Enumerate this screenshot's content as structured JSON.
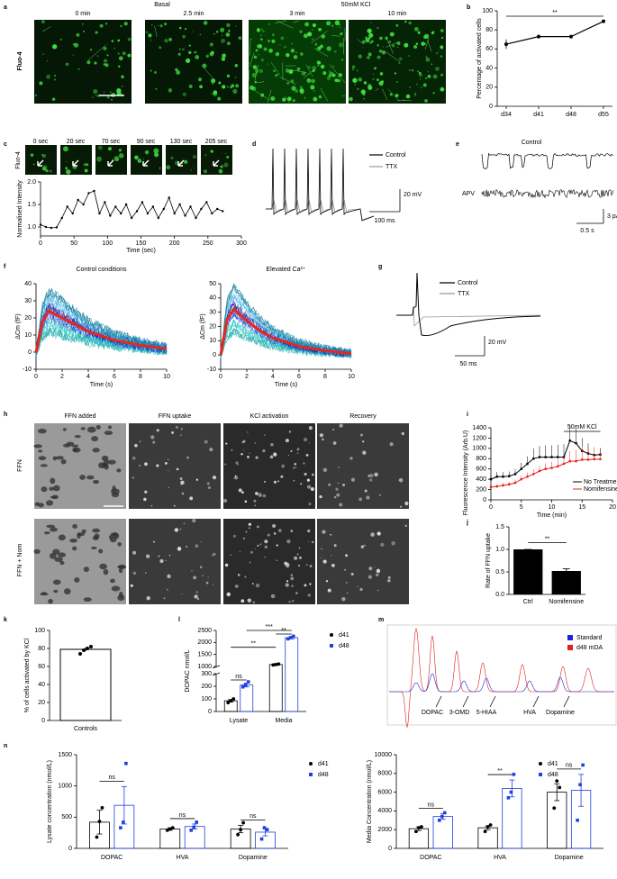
{
  "panels": {
    "a": {
      "letter": "a",
      "conditions": [
        "Basal",
        "50mM KCl"
      ],
      "times": [
        "0 min",
        "2.5 min",
        "3 min",
        "10 min"
      ],
      "stain": "Fluo-4"
    },
    "b": {
      "letter": "b",
      "type": "line",
      "categories": [
        "d34",
        "d41",
        "d48",
        "d55"
      ],
      "values": [
        65,
        73,
        73,
        89
      ],
      "errors": [
        5,
        2,
        1,
        1
      ],
      "ylabel": "Percentage of activated cells",
      "ylim": [
        0,
        100
      ],
      "yticks": [
        0,
        20,
        40,
        60,
        80,
        100
      ],
      "significance": "**",
      "color": "#000000"
    },
    "c": {
      "letter": "c",
      "stain": "Fluo-4",
      "times": [
        "0 sec",
        "20 sec",
        "70 sec",
        "90 sec",
        "130 sec",
        "205 sec"
      ],
      "type": "line",
      "xlabel": "Time (sec)",
      "ylabel": "Normalised Intensity",
      "x": [
        0,
        8,
        16,
        24,
        32,
        40,
        48,
        56,
        64,
        72,
        80,
        88,
        96,
        104,
        112,
        120,
        128,
        136,
        144,
        152,
        160,
        168,
        176,
        184,
        192,
        200,
        208,
        216,
        224,
        232,
        240,
        248,
        256,
        264,
        272
      ],
      "values": [
        1.05,
        1.0,
        0.98,
        0.99,
        1.2,
        1.45,
        1.3,
        1.6,
        1.5,
        1.75,
        1.8,
        1.3,
        1.55,
        1.25,
        1.45,
        1.3,
        1.5,
        1.2,
        1.35,
        1.55,
        1.3,
        1.45,
        1.2,
        1.4,
        1.65,
        1.3,
        1.5,
        1.25,
        1.45,
        1.2,
        1.4,
        1.55,
        1.3,
        1.4,
        1.35
      ],
      "xlim": [
        0,
        300
      ],
      "xticks": [
        0,
        50,
        100,
        150,
        200,
        250,
        300
      ],
      "ylim": [
        0.8,
        2.0
      ],
      "yticks": [
        {
          "value": 1,
          "label": "1.0"
        },
        {
          "value": 1.5,
          "label": "1.5"
        },
        {
          "value": 2,
          "label": "2.0"
        }
      ]
    },
    "d": {
      "letter": "d",
      "legend": [
        "Control",
        "TTX"
      ],
      "scale_y": "20 mV",
      "scale_x": "100 ms"
    },
    "e": {
      "letter": "e",
      "traces": [
        "Control",
        "APV"
      ],
      "scale_y": "3 pA",
      "scale_x": "0.5 s"
    },
    "f": {
      "letter": "f",
      "type": "line",
      "ylabel": "ΔCm (fF)",
      "xlabel": "Time (s)",
      "xlim": [
        0,
        10
      ],
      "xticks": [
        0,
        2,
        4,
        6,
        8,
        10
      ],
      "mean_color": "#e8261f",
      "plots": [
        {
          "title": "Control conditions",
          "x": [
            0,
            0.5,
            1,
            2,
            3,
            4,
            6,
            8,
            10
          ],
          "values": [
            0,
            18,
            24,
            20,
            16,
            12,
            7,
            4,
            2
          ],
          "ylim": [
            -10,
            40
          ],
          "yticks": [
            -10,
            0,
            10,
            20,
            30,
            40
          ]
        },
        {
          "title": "Elevated Ca²⁺",
          "x": [
            0,
            0.5,
            1,
            2,
            3,
            4,
            6,
            8,
            10
          ],
          "values": [
            0,
            25,
            32,
            24,
            17,
            12,
            6,
            3,
            1
          ],
          "ylim": [
            -10,
            50
          ],
          "yticks": [
            -10,
            0,
            10,
            20,
            30,
            40,
            50
          ]
        }
      ]
    },
    "g": {
      "letter": "g",
      "legend": [
        "Control",
        "TTX"
      ],
      "scale_y": "20 mV",
      "scale_x": "50 ms"
    },
    "h": {
      "letter": "h",
      "stages": [
        "FFN added",
        "FFN uptake",
        "KCl activation",
        "Recovery"
      ],
      "conditions": [
        "FFN",
        "FFN + Nom"
      ]
    },
    "i": {
      "letter": "i",
      "type": "line",
      "xlabel": "Time (min)",
      "ylabel": "Fluorescence Intensity (Arb.U)",
      "annotation": "50mM KCl",
      "annotation_x": [
        12,
        18
      ],
      "x": [
        0,
        1,
        2,
        3,
        4,
        5,
        6,
        7,
        8,
        9,
        10,
        11,
        12,
        13,
        14,
        15,
        16,
        17,
        18
      ],
      "series": [
        {
          "name": "No Treatment",
          "color": "#000000",
          "values": [
            400,
            450,
            450,
            460,
            500,
            600,
            700,
            800,
            830,
            830,
            830,
            830,
            830,
            1150,
            1100,
            950,
            900,
            870,
            880
          ],
          "errors": [
            80,
            90,
            90,
            90,
            100,
            120,
            150,
            200,
            220,
            230,
            230,
            240,
            250,
            300,
            280,
            250,
            200,
            150,
            120
          ]
        },
        {
          "name": "Nomifensine",
          "color": "#e8261f",
          "values": [
            250,
            260,
            280,
            300,
            330,
            400,
            450,
            500,
            560,
            600,
            620,
            650,
            700,
            750,
            750,
            780,
            780,
            790,
            790
          ],
          "errors": [
            40,
            40,
            50,
            50,
            60,
            70,
            80,
            90,
            100,
            110,
            120,
            130,
            150,
            200,
            220,
            250,
            240,
            230,
            220
          ]
        }
      ],
      "xlim": [
        0,
        20
      ],
      "xticks": [
        0,
        5,
        10,
        15,
        20
      ],
      "ylim": [
        0,
        1400
      ],
      "yticks": [
        0,
        200,
        400,
        600,
        800,
        1000,
        1200,
        1400
      ]
    },
    "j": {
      "letter": "j",
      "type": "bar",
      "categories": [
        "Ctrl",
        "Nomifensine"
      ],
      "values": [
        1.0,
        0.52
      ],
      "errors": [
        0,
        0.05
      ],
      "ylabel": "Rate of FFN uptake",
      "ylim": [
        0,
        1.5
      ],
      "yticks": [
        {
          "value": 0,
          "label": "0.0"
        },
        {
          "value": 0.5,
          "label": "0.5"
        },
        {
          "value": 1,
          "label": "1.0"
        },
        {
          "value": 1.5,
          "label": "1.5"
        }
      ],
      "color": "#000000",
      "significance": "**"
    },
    "k": {
      "letter": "k",
      "type": "bar",
      "categories": [
        "Controls"
      ],
      "values": [
        79
      ],
      "errors": [
        2
      ],
      "points": [
        [
          74,
          78,
          80,
          82
        ]
      ],
      "ylabel": "% of cells activated by KCl",
      "ylim": [
        0,
        100
      ],
      "yticks": [
        0,
        20,
        40,
        60,
        80,
        100
      ],
      "color": "#ffffff"
    },
    "l": {
      "letter": "l",
      "type": "bar",
      "categories": [
        "Lysate",
        "Media"
      ],
      "ylabel": "DOPAC nmol/L",
      "ylim": [
        0,
        2500
      ],
      "ybreak": [
        300,
        1000
      ],
      "yticks": [
        0,
        100,
        200,
        300,
        1000,
        1500,
        2000,
        2500
      ],
      "significance": [
        "ns",
        "**",
        "***",
        "**"
      ],
      "series": [
        {
          "name": "d41",
          "color": "#000000",
          "values": [
            85,
            1080
          ],
          "errors": [
            10,
            30
          ],
          "points": [
            [
              70,
              85,
              100
            ],
            [
              1060,
              1080,
              1100
            ]
          ]
        },
        {
          "name": "d48",
          "color": "#1f3fe0",
          "values": [
            210,
            2200
          ],
          "errors": [
            15,
            50
          ],
          "points": [
            [
              195,
              210,
              235
            ],
            [
              2150,
              2200,
              2260
            ]
          ]
        }
      ]
    },
    "m": {
      "letter": "m",
      "legend": [
        {
          "name": "Standard",
          "color": "#1f1fe0"
        },
        {
          "name": "d48 mDA",
          "color": "#e02020"
        }
      ],
      "peaks": [
        "DOPAC",
        "3-OMD",
        "5-HIAA",
        "HVA",
        "Dopamine"
      ]
    },
    "n": {
      "letter": "n",
      "categories": [
        "DOPAC",
        "HVA",
        "Dopamine"
      ],
      "plots": [
        {
          "ylabel": "Lysate concentration (nmol/L)",
          "ylim": [
            0,
            1500
          ],
          "yticks": [
            0,
            500,
            1000,
            1500
          ],
          "significance": [
            "ns",
            "ns",
            "ns"
          ],
          "series": [
            {
              "name": "d41",
              "color": "#000000",
              "values": [
                420,
                310,
                310
              ],
              "errors": [
                190,
                20,
                60
              ],
              "points": [
                [
                  180,
                  430,
                  650
                ],
                [
                  290,
                  310,
                  330
                ],
                [
                  220,
                  300,
                  410
                ]
              ]
            },
            {
              "name": "d48",
              "color": "#1f3fe0",
              "values": [
                690,
                350,
                260
              ],
              "errors": [
                300,
                40,
                60
              ],
              "points": [
                [
                  330,
                  420,
                  1360
                ],
                [
                  290,
                  340,
                  420
                ],
                [
                  150,
                  330,
                  300
                ]
              ]
            }
          ]
        },
        {
          "ylabel": "Media Concentration (nmol/L)",
          "ylim": [
            0,
            10000
          ],
          "yticks": [
            0,
            2000,
            4000,
            6000,
            8000,
            10000
          ],
          "significance": [
            "ns",
            "**",
            "ns"
          ],
          "series": [
            {
              "name": "d41",
              "color": "#000000",
              "values": [
                2100,
                2200,
                6000
              ],
              "errors": [
                200,
                200,
                900
              ],
              "points": [
                [
                  1800,
                  2200,
                  2300
                ],
                [
                  1800,
                  2300,
                  2500
                ],
                [
                  4300,
                  7200,
                  6500
                ]
              ]
            },
            {
              "name": "d48",
              "color": "#1f3fe0",
              "values": [
                3400,
                6400,
                6200
              ],
              "errors": [
                300,
                900,
                1700
              ],
              "points": [
                [
                  3000,
                  3400,
                  3800
                ],
                [
                  5400,
                  6000,
                  7900
                ],
                [
                  3000,
                  6800,
                  8900
                ]
              ]
            }
          ]
        }
      ]
    }
  }
}
